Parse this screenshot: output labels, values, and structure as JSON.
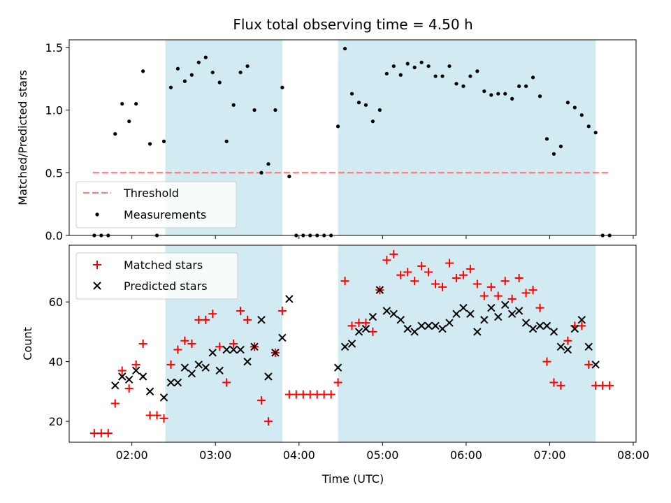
{
  "colors": {
    "shade": "#add8e6",
    "threshold": "#f08080",
    "measurement": "#000000",
    "matched": "#ff0000",
    "predicted": "#000000"
  },
  "chart_data": [
    {
      "type": "scatter",
      "title": "Flux total observing time = 4.50 h",
      "ylabel": "Matched/Predicted stars",
      "xlabel": "",
      "xlim": [
        "01:15",
        "08:02"
      ],
      "ylim": [
        0,
        1.56
      ],
      "yticks": [
        0.0,
        0.5,
        1.0,
        1.5
      ],
      "ytick_labels": [
        "0.0",
        "0.5",
        "1.0",
        "1.5"
      ],
      "shaded_intervals": [
        [
          "02:24",
          "03:48"
        ],
        [
          "04:28",
          "07:33"
        ]
      ],
      "threshold": {
        "name": "Threshold",
        "value": 0.5,
        "x_range": [
          "01:32",
          "07:43"
        ]
      },
      "legend": {
        "position": "lower-left",
        "entries": [
          "Threshold",
          "Measurements"
        ]
      },
      "series": [
        {
          "name": "Measurements",
          "marker": "dot",
          "points": [
            [
              "01:33",
              0.0
            ],
            [
              "01:38",
              0.0
            ],
            [
              "01:43",
              0.0
            ],
            [
              "01:48",
              0.81
            ],
            [
              "01:53",
              1.05
            ],
            [
              "01:58",
              0.91
            ],
            [
              "02:03",
              1.05
            ],
            [
              "02:08",
              1.31
            ],
            [
              "02:13",
              0.73
            ],
            [
              "02:18",
              0.0
            ],
            [
              "02:23",
              0.75
            ],
            [
              "02:28",
              1.18
            ],
            [
              "02:33",
              1.33
            ],
            [
              "02:38",
              1.23
            ],
            [
              "02:43",
              1.28
            ],
            [
              "02:48",
              1.38
            ],
            [
              "02:53",
              1.42
            ],
            [
              "02:58",
              1.3
            ],
            [
              "03:03",
              1.22
            ],
            [
              "03:08",
              0.75
            ],
            [
              "03:13",
              1.04
            ],
            [
              "03:18",
              1.3
            ],
            [
              "03:23",
              1.35
            ],
            [
              "03:28",
              1.0
            ],
            [
              "03:33",
              0.5
            ],
            [
              "03:38",
              0.57
            ],
            [
              "03:43",
              1.0
            ],
            [
              "03:48",
              1.18
            ],
            [
              "03:53",
              0.47
            ],
            [
              "03:58",
              0.0
            ],
            [
              "04:03",
              0.0
            ],
            [
              "04:08",
              0.0
            ],
            [
              "04:13",
              0.0
            ],
            [
              "04:18",
              0.0
            ],
            [
              "04:23",
              0.0
            ],
            [
              "04:28",
              0.87
            ],
            [
              "04:33",
              1.49
            ],
            [
              "04:38",
              1.13
            ],
            [
              "04:43",
              1.06
            ],
            [
              "04:48",
              1.04
            ],
            [
              "04:53",
              0.91
            ],
            [
              "04:58",
              1.0
            ],
            [
              "05:03",
              1.29
            ],
            [
              "05:08",
              1.35
            ],
            [
              "05:13",
              1.28
            ],
            [
              "05:18",
              1.37
            ],
            [
              "05:23",
              1.34
            ],
            [
              "05:28",
              1.38
            ],
            [
              "05:33",
              1.35
            ],
            [
              "05:38",
              1.27
            ],
            [
              "05:43",
              1.27
            ],
            [
              "05:48",
              1.35
            ],
            [
              "05:53",
              1.21
            ],
            [
              "05:58",
              1.19
            ],
            [
              "06:03",
              1.27
            ],
            [
              "06:08",
              1.31
            ],
            [
              "06:13",
              1.15
            ],
            [
              "06:18",
              1.12
            ],
            [
              "06:23",
              1.13
            ],
            [
              "06:28",
              1.13
            ],
            [
              "06:33",
              1.09
            ],
            [
              "06:38",
              1.19
            ],
            [
              "06:43",
              1.19
            ],
            [
              "06:48",
              1.26
            ],
            [
              "06:53",
              1.11
            ],
            [
              "06:58",
              0.77
            ],
            [
              "07:03",
              0.65
            ],
            [
              "07:08",
              0.71
            ],
            [
              "07:13",
              1.06
            ],
            [
              "07:18",
              1.02
            ],
            [
              "07:23",
              0.96
            ],
            [
              "07:28",
              0.87
            ],
            [
              "07:33",
              0.82
            ],
            [
              "07:38",
              0.0
            ],
            [
              "07:43",
              0.0
            ]
          ]
        }
      ]
    },
    {
      "type": "scatter",
      "title": "",
      "ylabel": "Count",
      "xlabel": "Time (UTC)",
      "xlim": [
        "01:15",
        "08:02"
      ],
      "ylim": [
        13,
        79
      ],
      "yticks": [
        20,
        40,
        60
      ],
      "ytick_labels": [
        "20",
        "40",
        "60"
      ],
      "xticks": [
        "02:00",
        "03:00",
        "04:00",
        "05:00",
        "06:00",
        "07:00",
        "08:00"
      ],
      "xtick_labels": [
        "02:00",
        "03:00",
        "04:00",
        "05:00",
        "06:00",
        "07:00",
        "08:00"
      ],
      "shaded_intervals": [
        [
          "02:24",
          "03:48"
        ],
        [
          "04:28",
          "07:33"
        ]
      ],
      "legend": {
        "position": "upper-left",
        "entries": [
          "Matched stars",
          "Predicted stars"
        ]
      },
      "series": [
        {
          "name": "Matched stars",
          "marker": "plus",
          "points": [
            [
              "01:33",
              16
            ],
            [
              "01:38",
              16
            ],
            [
              "01:43",
              16
            ],
            [
              "01:48",
              26
            ],
            [
              "01:53",
              37
            ],
            [
              "01:58",
              31
            ],
            [
              "02:03",
              39
            ],
            [
              "02:08",
              46
            ],
            [
              "02:13",
              22
            ],
            [
              "02:18",
              22
            ],
            [
              "02:23",
              21
            ],
            [
              "02:28",
              39
            ],
            [
              "02:33",
              44
            ],
            [
              "02:38",
              47
            ],
            [
              "02:43",
              46
            ],
            [
              "02:48",
              54
            ],
            [
              "02:53",
              54
            ],
            [
              "02:58",
              56
            ],
            [
              "03:03",
              45
            ],
            [
              "03:08",
              33
            ],
            [
              "03:13",
              46
            ],
            [
              "03:18",
              57
            ],
            [
              "03:23",
              54
            ],
            [
              "03:28",
              45
            ],
            [
              "03:33",
              27
            ],
            [
              "03:38",
              20
            ],
            [
              "03:43",
              43
            ],
            [
              "03:48",
              57
            ],
            [
              "03:53",
              29
            ],
            [
              "03:58",
              29
            ],
            [
              "04:03",
              29
            ],
            [
              "04:08",
              29
            ],
            [
              "04:13",
              29
            ],
            [
              "04:18",
              29
            ],
            [
              "04:23",
              29
            ],
            [
              "04:28",
              33
            ],
            [
              "04:33",
              67
            ],
            [
              "04:38",
              52
            ],
            [
              "04:43",
              53
            ],
            [
              "04:48",
              53
            ],
            [
              "04:53",
              50
            ],
            [
              "04:58",
              64
            ],
            [
              "05:03",
              74
            ],
            [
              "05:08",
              76
            ],
            [
              "05:13",
              69
            ],
            [
              "05:18",
              70
            ],
            [
              "05:23",
              67
            ],
            [
              "05:28",
              72
            ],
            [
              "05:33",
              70
            ],
            [
              "05:38",
              66
            ],
            [
              "05:43",
              65
            ],
            [
              "05:48",
              73
            ],
            [
              "05:53",
              68
            ],
            [
              "05:58",
              69
            ],
            [
              "06:03",
              71
            ],
            [
              "06:08",
              66
            ],
            [
              "06:13",
              62
            ],
            [
              "06:18",
              65
            ],
            [
              "06:23",
              62
            ],
            [
              "06:28",
              67
            ],
            [
              "06:33",
              61
            ],
            [
              "06:38",
              68
            ],
            [
              "06:43",
              63
            ],
            [
              "06:48",
              64
            ],
            [
              "06:53",
              58
            ],
            [
              "06:58",
              40
            ],
            [
              "07:03",
              33
            ],
            [
              "07:08",
              32
            ],
            [
              "07:13",
              47
            ],
            [
              "07:18",
              52
            ],
            [
              "07:23",
              52
            ],
            [
              "07:28",
              39
            ],
            [
              "07:33",
              32
            ],
            [
              "07:38",
              32
            ],
            [
              "07:43",
              32
            ]
          ]
        },
        {
          "name": "Predicted stars",
          "marker": "x",
          "points": [
            [
              "01:48",
              32
            ],
            [
              "01:53",
              35
            ],
            [
              "01:58",
              34
            ],
            [
              "02:03",
              37
            ],
            [
              "02:08",
              35
            ],
            [
              "02:13",
              30
            ],
            [
              "02:23",
              28
            ],
            [
              "02:28",
              33
            ],
            [
              "02:33",
              33
            ],
            [
              "02:38",
              38
            ],
            [
              "02:43",
              36
            ],
            [
              "02:48",
              39
            ],
            [
              "02:53",
              38
            ],
            [
              "02:58",
              43
            ],
            [
              "03:03",
              37
            ],
            [
              "03:08",
              44
            ],
            [
              "03:13",
              44
            ],
            [
              "03:18",
              44
            ],
            [
              "03:23",
              40
            ],
            [
              "03:28",
              45
            ],
            [
              "03:33",
              54
            ],
            [
              "03:38",
              35
            ],
            [
              "03:43",
              43
            ],
            [
              "03:48",
              48
            ],
            [
              "03:53",
              61
            ],
            [
              "04:28",
              38
            ],
            [
              "04:33",
              45
            ],
            [
              "04:38",
              46
            ],
            [
              "04:43",
              50
            ],
            [
              "04:48",
              51
            ],
            [
              "04:53",
              55
            ],
            [
              "04:58",
              64
            ],
            [
              "05:03",
              57
            ],
            [
              "05:08",
              56
            ],
            [
              "05:13",
              54
            ],
            [
              "05:18",
              51
            ],
            [
              "05:23",
              50
            ],
            [
              "05:28",
              52
            ],
            [
              "05:33",
              52
            ],
            [
              "05:38",
              52
            ],
            [
              "05:43",
              51
            ],
            [
              "05:48",
              53
            ],
            [
              "05:53",
              56
            ],
            [
              "05:58",
              58
            ],
            [
              "06:03",
              56
            ],
            [
              "06:08",
              50
            ],
            [
              "06:13",
              54
            ],
            [
              "06:18",
              58
            ],
            [
              "06:23",
              55
            ],
            [
              "06:28",
              59
            ],
            [
              "06:33",
              56
            ],
            [
              "06:38",
              57
            ],
            [
              "06:43",
              53
            ],
            [
              "06:48",
              51
            ],
            [
              "06:53",
              52
            ],
            [
              "06:58",
              52
            ],
            [
              "07:03",
              50
            ],
            [
              "07:08",
              45
            ],
            [
              "07:13",
              44
            ],
            [
              "07:18",
              51
            ],
            [
              "07:23",
              54
            ],
            [
              "07:28",
              45
            ],
            [
              "07:33",
              39
            ]
          ]
        }
      ]
    }
  ]
}
